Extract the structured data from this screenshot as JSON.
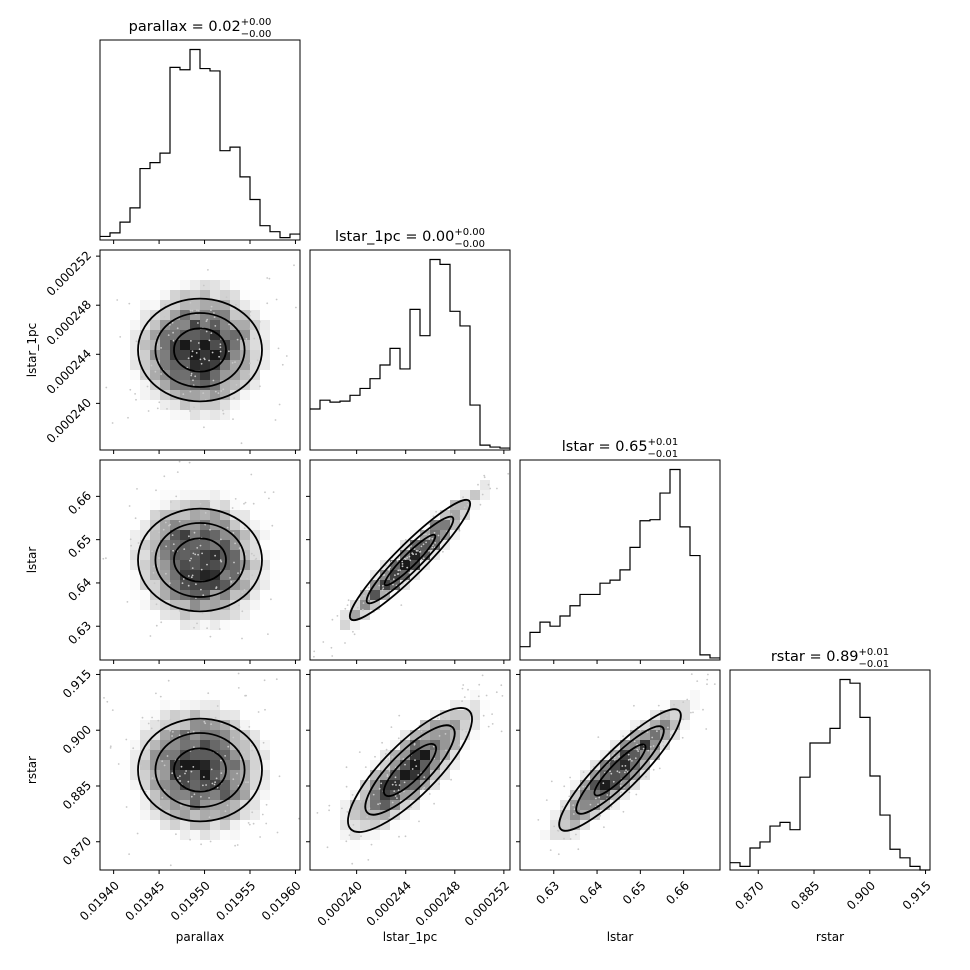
{
  "chart_data": {
    "type": "corner",
    "params": [
      "parallax",
      "lstar_1pc",
      "lstar",
      "rstar"
    ],
    "axis_labels": [
      "parallax",
      "lstar_1pc",
      "lstar",
      "rstar"
    ],
    "titles": [
      {
        "text": "parallax = 0.02",
        "sup": "+0.00",
        "sub": "−0.00"
      },
      {
        "text": "lstar_1pc = 0.00",
        "sup": "+0.00",
        "sub": "−0.00"
      },
      {
        "text": "lstar = 0.65",
        "sup": "+0.01",
        "sub": "−0.01"
      },
      {
        "text": "rstar = 0.89",
        "sup": "+0.01",
        "sub": "−0.01"
      }
    ],
    "ranges": [
      [
        0.019385,
        0.019605
      ],
      [
        0.0002362,
        0.0002525
      ],
      [
        0.6222,
        0.6684
      ],
      [
        0.8624,
        0.9162
      ]
    ],
    "ticks": [
      {
        "values": [
          0.0194,
          0.01945,
          0.0195,
          0.01955,
          0.0196
        ],
        "labels": [
          "0.01940",
          "0.01945",
          "0.01950",
          "0.01955",
          "0.01960"
        ]
      },
      {
        "values": [
          0.00024,
          0.000244,
          0.000248,
          0.000252
        ],
        "labels": [
          "0.000240",
          "0.000244",
          "0.000248",
          "0.000252"
        ]
      },
      {
        "values": [
          0.63,
          0.64,
          0.65,
          0.66
        ],
        "labels": [
          "0.63",
          "0.64",
          "0.65",
          "0.66"
        ]
      },
      {
        "values": [
          0.87,
          0.885,
          0.9,
          0.915
        ],
        "labels": [
          "0.870",
          "0.885",
          "0.900",
          "0.915"
        ]
      }
    ],
    "hist1d": [
      [
        0.3,
        0.6,
        1.5,
        2.7,
        6.0,
        6.5,
        7.3,
        14.5,
        14.3,
        16.0,
        14.4,
        14.2,
        7.5,
        7.8,
        5.3,
        3.4,
        1.2,
        0.7,
        0.2,
        0.5
      ],
      [
        4.2,
        5.1,
        4.9,
        5.0,
        5.6,
        6.3,
        7.3,
        8.7,
        10.4,
        8.3,
        14.4,
        11.7,
        19.5,
        19.0,
        14.2,
        12.7,
        4.6,
        0.5,
        0.3,
        0.2
      ],
      [
        1.3,
        2.7,
        3.7,
        3.3,
        4.3,
        5.3,
        6.4,
        6.4,
        7.5,
        7.8,
        8.8,
        11.0,
        13.6,
        13.7,
        16.3,
        18.6,
        13.0,
        10.2,
        0.5,
        0.2
      ],
      [
        0.6,
        0.3,
        1.8,
        2.3,
        3.6,
        3.9,
        3.3,
        7.6,
        10.4,
        10.4,
        11.6,
        15.6,
        15.3,
        12.5,
        7.7,
        4.5,
        1.7,
        1.0,
        0.3,
        0.0
      ]
    ]
  }
}
